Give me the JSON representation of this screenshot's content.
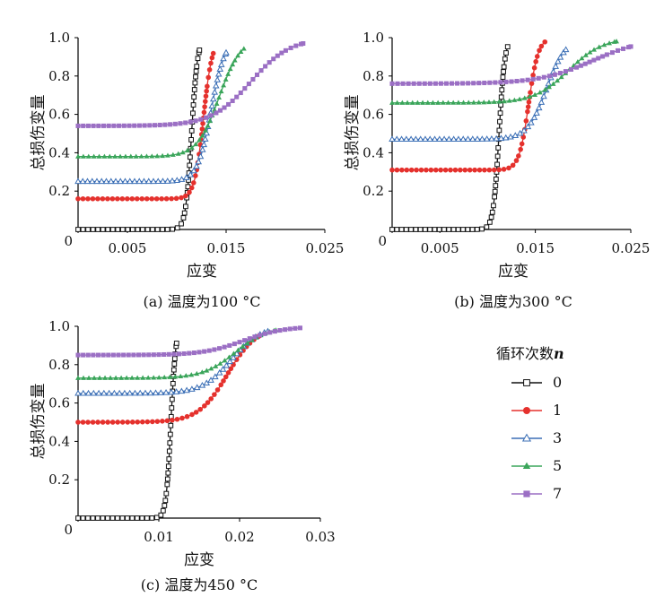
{
  "chart_data": [
    {
      "type": "line",
      "panel": "a",
      "caption": "(a) 温度为100 °C",
      "xlabel": "应变",
      "ylabel": "总损伤变量",
      "xlim": [
        0,
        0.025
      ],
      "ylim": [
        0,
        1.0
      ],
      "xticks": [
        0,
        0.005,
        0.015,
        0.025
      ],
      "xtick_labels": [
        "0",
        "0.005",
        "0.015",
        "0.025"
      ],
      "yticks": [
        0.2,
        0.4,
        0.6,
        0.8,
        1.0
      ],
      "ytick_labels": [
        "0.2",
        "0.4",
        "0.6",
        "0.8",
        "1.0"
      ],
      "series": [
        {
          "name": "0",
          "d0": 0.0,
          "c": 0.0115,
          "w": 0.0003,
          "xend": 0.0123
        },
        {
          "name": "1",
          "d0": 0.16,
          "c": 0.0127,
          "w": 0.00045,
          "xend": 0.0137
        },
        {
          "name": "3",
          "d0": 0.25,
          "c": 0.0135,
          "w": 0.0007,
          "xend": 0.015
        },
        {
          "name": "5",
          "d0": 0.38,
          "c": 0.0143,
          "w": 0.0011,
          "xend": 0.0168
        },
        {
          "name": "7",
          "d0": 0.54,
          "c": 0.0175,
          "w": 0.002,
          "xend": 0.0228
        }
      ]
    },
    {
      "type": "line",
      "panel": "b",
      "caption": "(b) 温度为300 °C",
      "xlabel": "应变",
      "ylabel": "总损伤变量",
      "xlim": [
        0,
        0.025
      ],
      "ylim": [
        0,
        1.0
      ],
      "xticks": [
        0,
        0.005,
        0.015,
        0.025
      ],
      "xtick_labels": [
        "0",
        "0.005",
        "0.015",
        "0.025"
      ],
      "yticks": [
        0.2,
        0.4,
        0.6,
        0.8,
        1.0
      ],
      "ytick_labels": [
        "0.2",
        "0.4",
        "0.6",
        "0.8",
        "1.0"
      ],
      "series": [
        {
          "name": "0",
          "d0": 0.0,
          "c": 0.0112,
          "w": 0.0003,
          "xend": 0.0121
        },
        {
          "name": "1",
          "d0": 0.31,
          "c": 0.0143,
          "w": 0.0005,
          "xend": 0.016
        },
        {
          "name": "3",
          "d0": 0.47,
          "c": 0.0162,
          "w": 0.001,
          "xend": 0.0182
        },
        {
          "name": "5",
          "d0": 0.66,
          "c": 0.0185,
          "w": 0.0018,
          "xend": 0.0235
        },
        {
          "name": "7",
          "d0": 0.76,
          "c": 0.021,
          "w": 0.0028,
          "xend": 0.025
        }
      ]
    },
    {
      "type": "line",
      "panel": "c",
      "caption": "(c) 温度为450 °C",
      "xlabel": "应变",
      "ylabel": "总损伤变量",
      "xlim": [
        0,
        0.03
      ],
      "ylim": [
        0,
        1.0
      ],
      "xticks": [
        0,
        0.01,
        0.02,
        0.03
      ],
      "xtick_labels": [
        "0",
        "0.01",
        "0.02",
        "0.03"
      ],
      "yticks": [
        0.2,
        0.4,
        0.6,
        0.8,
        1.0
      ],
      "ytick_labels": [
        "0.2",
        "0.4",
        "0.6",
        "0.8",
        "1.0"
      ],
      "series": [
        {
          "name": "0",
          "d0": 0.0,
          "c": 0.0115,
          "w": 0.0003,
          "xend": 0.0122
        },
        {
          "name": "1",
          "d0": 0.5,
          "c": 0.0185,
          "w": 0.0018,
          "xend": 0.0225
        },
        {
          "name": "3",
          "d0": 0.65,
          "c": 0.019,
          "w": 0.0018,
          "xend": 0.0235
        },
        {
          "name": "5",
          "d0": 0.73,
          "c": 0.0195,
          "w": 0.002,
          "xend": 0.0245
        },
        {
          "name": "7",
          "d0": 0.85,
          "c": 0.0205,
          "w": 0.0025,
          "xend": 0.0275
        }
      ]
    }
  ],
  "legend": {
    "title": "循环次数",
    "title_var": "n",
    "placement": "right of panel (c)",
    "items": [
      {
        "name": "0",
        "color": "#111111",
        "marker": "open-square"
      },
      {
        "name": "1",
        "color": "#e5312d",
        "marker": "filled-circle"
      },
      {
        "name": "3",
        "color": "#3b6fb6",
        "marker": "open-triangle"
      },
      {
        "name": "5",
        "color": "#3aa55a",
        "marker": "filled-triangle"
      },
      {
        "name": "7",
        "color": "#9b6fc4",
        "marker": "filled-square"
      }
    ]
  }
}
